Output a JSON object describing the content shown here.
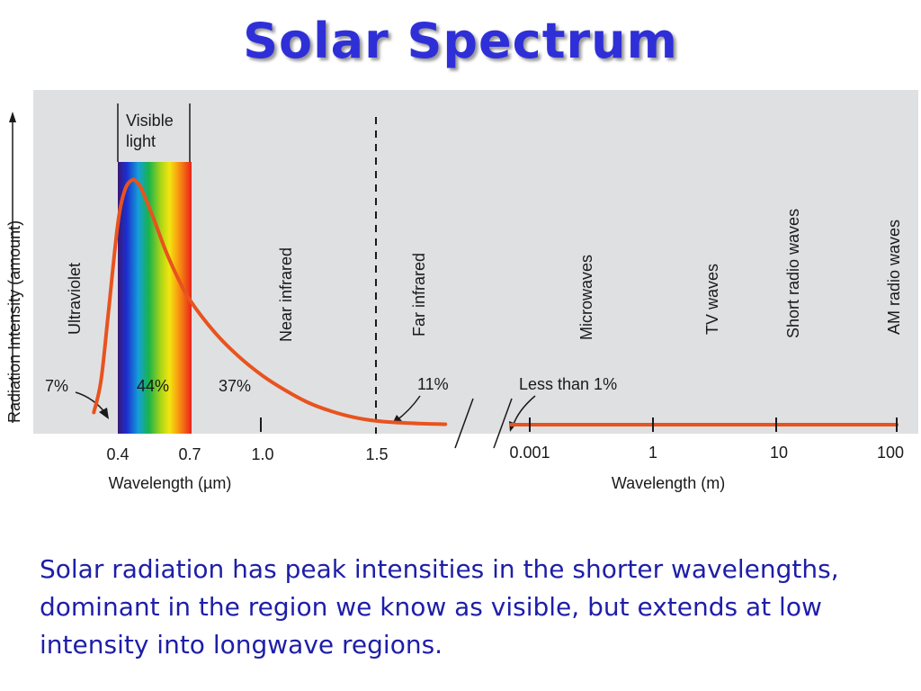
{
  "slide": {
    "title": "Solar Spectrum",
    "caption": "Solar radiation has peak intensities in the shorter wavelengths, dominant in the region we know as visible, but extends at low intensity into longwave regions."
  },
  "colors": {
    "title": "#2f2fd8",
    "caption": "#1e1ea8",
    "panel": "#dfe0e2",
    "curve": "#e8531e"
  },
  "chart_data": {
    "type": "line",
    "title": "",
    "ylabel": "Radiation Intensity (amount)",
    "xlabel_left": "Wavelength (µm)",
    "xlabel_right": "Wavelength (m)",
    "ticks_left": [
      "0.4",
      "0.7",
      "1.0",
      "1.5"
    ],
    "ticks_right": [
      "0.001",
      "1",
      "10",
      "100"
    ],
    "visible_band": {
      "label": "Visible light",
      "from_um": 0.4,
      "to_um": 0.7
    },
    "regions": [
      "Ultraviolet",
      "Near infrared",
      "Far infrared",
      "Microwaves",
      "TV waves",
      "Short radio waves",
      "AM radio waves"
    ],
    "percentages": [
      {
        "label": "7%",
        "region": "Ultraviolet"
      },
      {
        "label": "44%",
        "region": "Visible light"
      },
      {
        "label": "37%",
        "region": "Near infrared"
      },
      {
        "label": "11%",
        "region": "Far infrared"
      },
      {
        "label": "Less than 1%",
        "region": "Microwaves and longer"
      }
    ],
    "series": [
      {
        "x_um": [
          0.3,
          0.33,
          0.36,
          0.4,
          0.43,
          0.46,
          0.48,
          0.5,
          0.55,
          0.6,
          0.65,
          0.7,
          0.8,
          0.9,
          1.0,
          1.1,
          1.2,
          1.3,
          1.4,
          1.5,
          1.6,
          1.7,
          1.8
        ],
        "y": [
          0.05,
          0.18,
          0.45,
          0.82,
          0.96,
          1.0,
          0.99,
          0.96,
          0.84,
          0.71,
          0.6,
          0.51,
          0.38,
          0.28,
          0.2,
          0.14,
          0.09,
          0.055,
          0.03,
          0.015,
          0.008,
          0.004,
          0.002
        ]
      }
    ]
  }
}
